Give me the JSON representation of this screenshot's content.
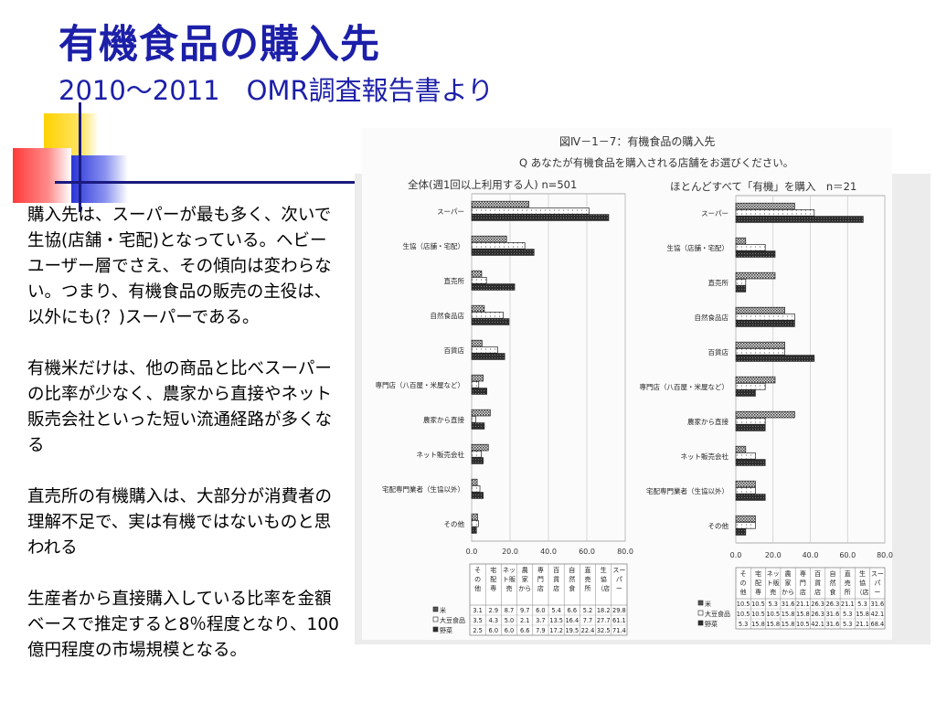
{
  "slide": {
    "title": "有機食品の購入先",
    "subtitle": "2010～2011　OMR調査報告書より"
  },
  "body_paragraphs": [
    "購入先は、スーパーが最も多く、次いで生協(店舗・宅配)となっている。ヘビーユーザー層でさえ、その傾向は変わらない。つまり、有機食品の販売の主役は、以外にも(？)スーパーである。",
    "有機米だけは、他の商品と比べスーパーの比率が少なく、農家から直接やネット販売会社といった短い流通経路が多くなる",
    "直売所の有機購入は、大部分が消費者の理解不足で、実は有機ではないものと思われる",
    "生産者から直接購入している比率を金額ベースで推定すると8％程度となり、100億円程度の市場規模となる。"
  ],
  "figure": {
    "title": "図Ⅳ－1－7：有機食品の購入先",
    "question": "Q あなたが有機食品を購入される店舗をお選びください。"
  },
  "colors": {
    "title_blue": "#1c1fa8",
    "bar_dark": "#3a3a3a",
    "bar_white": "#ffffff",
    "grid": "#bbbbbb"
  },
  "chart_data": [
    {
      "type": "bar",
      "orientation": "horizontal",
      "panel_title": "全体(週1回以上利用する人) n=501",
      "categories": [
        "スーパー",
        "生協（店舗・宅配）",
        "直売所",
        "自然食品店",
        "百貨店",
        "専門店（八百屋・米屋など）",
        "農家から直接",
        "ネット販売会社",
        "宅配専門業者（生協以外）",
        "その他"
      ],
      "series": [
        {
          "name": "米",
          "values": [
            29.8,
            18.2,
            5.2,
            6.6,
            5.4,
            6.0,
            9.7,
            8.7,
            2.9,
            3.1
          ]
        },
        {
          "name": "大豆食品",
          "values": [
            61.1,
            27.7,
            7.7,
            16.4,
            13.5,
            3.7,
            2.1,
            5.0,
            4.3,
            3.5
          ]
        },
        {
          "name": "野菜",
          "values": [
            71.4,
            32.5,
            22.4,
            19.5,
            17.2,
            7.9,
            6.6,
            6.0,
            6.0,
            2.5
          ]
        }
      ],
      "xlim": [
        0,
        80
      ],
      "x_ticks": [
        "0.0",
        "20.0",
        "40.0",
        "60.0",
        "80.0"
      ],
      "table": {
        "headers": [
          "そ の 他",
          "宅 配 専",
          "ネッ ト販 売",
          "農 家 から",
          "専 門 店",
          "百 貨 店",
          "自 然 食",
          "直 売 所",
          "生 協 （店",
          "スー パ ー"
        ],
        "rows": [
          {
            "label": "米",
            "values": [
              "3.1",
              "2.9",
              "8.7",
              "9.7",
              "6.0",
              "5.4",
              "6.6",
              "5.2",
              "18.2",
              "29.8"
            ]
          },
          {
            "label": "大豆食品",
            "values": [
              "3.5",
              "4.3",
              "5.0",
              "2.1",
              "3.7",
              "13.5",
              "16.4",
              "7.7",
              "27.7",
              "61.1"
            ]
          },
          {
            "label": "野菜",
            "values": [
              "2.5",
              "6.0",
              "6.0",
              "6.6",
              "7.9",
              "17.2",
              "19.5",
              "22.4",
              "32.5",
              "71.4"
            ]
          }
        ]
      }
    },
    {
      "type": "bar",
      "orientation": "horizontal",
      "panel_title": "ほとんどすべて「有機」を購入　n＝21",
      "categories": [
        "スーパー",
        "生協（店舗・宅配）",
        "直売所",
        "自然食品店",
        "百貨店",
        "専門店（八百屋・米屋など）",
        "農家から直接",
        "ネット販売会社",
        "宅配専門業者（生協以外）",
        "その他"
      ],
      "series": [
        {
          "name": "米",
          "values": [
            31.6,
            5.3,
            21.1,
            26.3,
            26.3,
            21.1,
            31.6,
            5.3,
            10.5,
            10.5
          ]
        },
        {
          "name": "大豆食品",
          "values": [
            42.1,
            15.8,
            5.3,
            31.6,
            26.3,
            15.8,
            15.8,
            10.5,
            10.5,
            10.5
          ]
        },
        {
          "name": "野菜",
          "values": [
            68.4,
            21.1,
            5.3,
            31.6,
            42.1,
            10.5,
            15.8,
            15.8,
            15.8,
            5.3
          ]
        }
      ],
      "xlim": [
        0,
        80
      ],
      "x_ticks": [
        "0.0",
        "20.0",
        "40.0",
        "60.0",
        "80.0"
      ],
      "table": {
        "headers": [
          "そ の 他",
          "宅 配 専",
          "ネッ ト販 売",
          "農 家 から",
          "専 門 店",
          "百 貨 店",
          "自 然 食",
          "直 売 所",
          "生 協 （店",
          "スー パ ー"
        ],
        "rows": [
          {
            "label": "米",
            "values": [
              "10.5",
              "10.5",
              "5.3",
              "31.6",
              "21.1",
              "26.3",
              "26.3",
              "21.1",
              "5.3",
              "31.6"
            ]
          },
          {
            "label": "大豆食品",
            "values": [
              "10.5",
              "10.5",
              "10.5",
              "15.8",
              "15.8",
              "26.3",
              "31.6",
              "5.3",
              "15.8",
              "42.1"
            ]
          },
          {
            "label": "野菜",
            "values": [
              "5.3",
              "15.8",
              "15.8",
              "15.8",
              "10.5",
              "42.1",
              "31.6",
              "5.3",
              "21.1",
              "68.4"
            ]
          }
        ]
      }
    }
  ]
}
